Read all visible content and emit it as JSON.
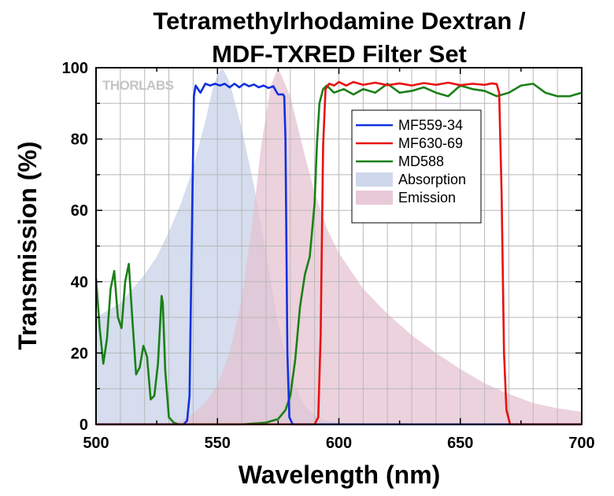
{
  "watermark": "THORLABS",
  "chart_data": {
    "type": "line",
    "title": [
      "Tetramethylrhodamine Dextran /",
      "MDF-TXRED Filter Set"
    ],
    "xlabel": "Wavelength (nm)",
    "ylabel": "Transmission (%)",
    "xlim": [
      500,
      700
    ],
    "ylim": [
      0,
      100
    ],
    "xticks": [
      500,
      550,
      600,
      650,
      700
    ],
    "yticks": [
      0,
      20,
      40,
      60,
      80,
      100
    ],
    "grid": true,
    "legend_position": "upper-right",
    "series": [
      {
        "name": "Absorption",
        "kind": "area",
        "color": "#c5d0e8",
        "opacity": 0.72,
        "x": [
          500,
          510,
          520,
          525,
          530,
          535,
          540,
          545,
          548,
          550,
          552,
          555,
          560,
          565,
          570,
          575,
          580,
          585,
          590,
          595,
          600,
          610,
          620
        ],
        "y": [
          30,
          34,
          42,
          47,
          54,
          62,
          72,
          85,
          94,
          98,
          100,
          96,
          83,
          67,
          48,
          28,
          14,
          6,
          2.5,
          1,
          0.5,
          0.2,
          0
        ]
      },
      {
        "name": "Emission",
        "kind": "area",
        "color": "#e4c0d0",
        "opacity": 0.72,
        "x": [
          530,
          535,
          540,
          545,
          550,
          555,
          560,
          565,
          568,
          572,
          575,
          580,
          585,
          590,
          595,
          600,
          610,
          620,
          630,
          640,
          650,
          660,
          670,
          680,
          690,
          700
        ],
        "y": [
          0,
          1,
          3,
          6,
          11,
          20,
          35,
          60,
          78,
          95,
          100,
          92,
          78,
          65,
          55,
          48,
          38,
          31,
          25,
          20,
          15.5,
          11.5,
          8.5,
          6,
          4.5,
          3.5
        ]
      },
      {
        "name": "MF559-34",
        "kind": "line",
        "color": "#1030e0",
        "x": [
          500,
          536,
          537.5,
          538.5,
          539.5,
          540.3,
          541,
          543,
          545,
          547,
          549,
          551,
          553,
          555,
          557,
          559,
          561,
          563,
          565,
          567,
          569,
          571,
          573,
          574.5,
          575,
          577,
          577.5,
          578,
          578.8,
          579.6,
          581,
          700
        ],
        "y": [
          0,
          0,
          1,
          8,
          55,
          92,
          95,
          93,
          95.5,
          95,
          95.5,
          95,
          95.5,
          94.5,
          95.5,
          94.5,
          95.5,
          94.8,
          95.3,
          94.5,
          95,
          94.3,
          94.8,
          93,
          92.5,
          92.5,
          92,
          80,
          20,
          2,
          0,
          0
        ]
      },
      {
        "name": "MF630-69",
        "kind": "line",
        "color": "#e81010",
        "x": [
          500,
          590,
          591.5,
          592.5,
          593.5,
          594.5,
          596,
          598,
          600,
          603,
          606,
          610,
          615,
          620,
          625,
          630,
          635,
          640,
          645,
          650,
          655,
          660,
          663,
          665,
          666,
          667,
          668,
          669,
          670.5,
          700
        ],
        "y": [
          0,
          0,
          2,
          25,
          78,
          94,
          95.5,
          95,
          96,
          95,
          96,
          95.2,
          95.8,
          95.1,
          95.6,
          95,
          95.7,
          95.2,
          95.8,
          95.1,
          95.5,
          95.2,
          95.6,
          95.4,
          93,
          65,
          20,
          4,
          0,
          0
        ]
      },
      {
        "name": "MD588",
        "kind": "line",
        "color": "#1a8016",
        "x": [
          500,
          501.5,
          503,
          504.5,
          506,
          507.5,
          509,
          510.5,
          512,
          513.5,
          515,
          516.5,
          518,
          519.5,
          521,
          522.5,
          524,
          525.5,
          527,
          527.5,
          528.5,
          530,
          532,
          534,
          540,
          550,
          560,
          570,
          575,
          578,
          580,
          582,
          584,
          586,
          588,
          590,
          591,
          592,
          593.5,
          595,
          598,
          602,
          606,
          610,
          615,
          620,
          625,
          630,
          635,
          640,
          645,
          650,
          655,
          660,
          665,
          670,
          675,
          680,
          685,
          690,
          695,
          700
        ],
        "y": [
          41,
          27,
          17,
          24,
          38,
          43,
          30,
          27,
          40,
          45,
          29,
          14,
          16,
          22,
          19,
          7,
          8,
          17,
          36,
          34,
          15,
          2,
          0.5,
          0,
          0,
          0,
          0,
          0.5,
          1.5,
          4,
          8,
          18,
          33,
          42,
          47,
          62,
          79,
          90,
          94,
          95,
          93,
          94,
          92.5,
          94,
          93,
          95.5,
          93,
          93.5,
          94.5,
          93,
          92,
          95,
          94,
          93.5,
          92,
          93,
          95,
          95.5,
          93,
          92,
          92,
          93
        ]
      }
    ],
    "legend_order": [
      "MF559-34",
      "MF630-69",
      "MD588",
      "Absorption",
      "Emission"
    ]
  }
}
